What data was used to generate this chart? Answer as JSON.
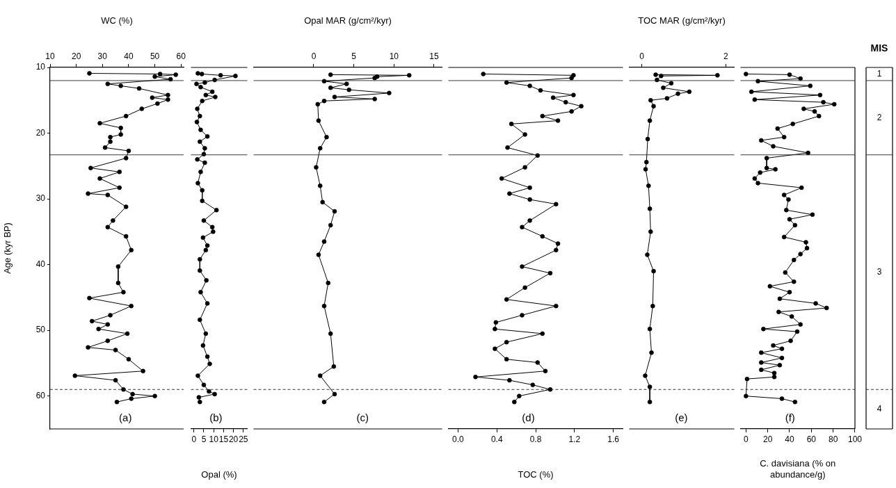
{
  "chart_data": [
    {
      "type": "line",
      "orientation": "horizontal",
      "xlabel": "WC (%)",
      "ylabel": "Age (kyr BP)",
      "xlim": [
        10,
        61
      ],
      "xticks": [
        10,
        20,
        30,
        40,
        50,
        60
      ],
      "ylim": [
        65,
        10
      ],
      "yticks": [
        10,
        20,
        30,
        40,
        50,
        60
      ],
      "color": "#000000",
      "marker": "circle",
      "line_style": "solid",
      "values": [
        25,
        52,
        58,
        50,
        56,
        32,
        37,
        44,
        55,
        49,
        55,
        51,
        45,
        39,
        29,
        37,
        37,
        33,
        33,
        31,
        40,
        39,
        25.5,
        36.5,
        29,
        36.5,
        24.5,
        32,
        39,
        34,
        32,
        39,
        41,
        36,
        36,
        38,
        25,
        41,
        33,
        26,
        32,
        28.5,
        39.5,
        32,
        24.5,
        35,
        40,
        45.5,
        19.5,
        35,
        38,
        41.5,
        50,
        41,
        35.5
      ],
      "x": [
        10.9,
        11.0,
        11.1,
        11.4,
        11.8,
        12.5,
        12.8,
        13.2,
        14.2,
        14.6,
        14.9,
        15.5,
        16.3,
        17.4,
        18.5,
        19.2,
        20.2,
        20.6,
        21.3,
        22.2,
        22.7,
        23.8,
        25.3,
        25.9,
        26.9,
        28.3,
        29.2,
        29.4,
        31.2,
        33.3,
        34.3,
        35.7,
        37.8,
        40.3,
        42.8,
        44.2,
        45.1,
        46.3,
        47.7,
        48.6,
        49.1,
        49.8,
        50.5,
        51.6,
        52.6,
        53.0,
        54.4,
        56.2,
        56.9,
        57.6,
        59.0,
        59.7,
        60.0,
        60.4,
        60.9
      ],
      "ref_lines": [
        {
          "axis": "y",
          "value": 12,
          "line_style": "solid"
        },
        {
          "axis": "y",
          "value": 23.3,
          "line_style": "solid"
        },
        {
          "axis": "y",
          "value": 59,
          "line_style": "dashed"
        }
      ],
      "annotations": [
        "(a)"
      ]
    },
    {
      "type": "line",
      "orientation": "horizontal",
      "xlabel": "Opal (%)",
      "xlim": [
        -1.5,
        27
      ],
      "xticks": [
        0,
        5,
        10,
        15,
        20,
        25
      ],
      "ylim": [
        65,
        10
      ],
      "tick_labels": "x",
      "color": "#000000",
      "marker": "circle",
      "line_style": "solid",
      "values": [
        2,
        4,
        13.5,
        21,
        10.5,
        5.5,
        1.3,
        3.4,
        9.3,
        6,
        10.8,
        4.2,
        1.7,
        3,
        1.5,
        3.4,
        6.8,
        3,
        5.5,
        5,
        1.7,
        5.5,
        3.4,
        2,
        4.2,
        4.2,
        11.4,
        5,
        9.3,
        9.7,
        4.6,
        6.8,
        6,
        3,
        3,
        6.3,
        3.4,
        6.8,
        3,
        6,
        4.6,
        6.8,
        8,
        2,
        5,
        7.6,
        10.5,
        2.5,
        3
      ],
      "x": [
        10.9,
        11.0,
        11.2,
        11.3,
        11.9,
        12.3,
        12.5,
        13.0,
        13.7,
        14.2,
        14.5,
        15.1,
        16.3,
        17.4,
        18.3,
        19.5,
        20.5,
        21.3,
        22.3,
        23.2,
        24.0,
        24.5,
        25.9,
        27.6,
        28.7,
        30.3,
        31.7,
        33.3,
        34.3,
        35.0,
        35.9,
        37.1,
        37.8,
        39.2,
        40.9,
        42.4,
        44.2,
        45.9,
        48.4,
        50.5,
        52.3,
        54.0,
        55.1,
        56.9,
        58.3,
        59.3,
        59.7,
        60.2,
        60.9
      ],
      "ref_lines": [
        {
          "axis": "y",
          "value": 12,
          "line_style": "solid"
        },
        {
          "axis": "y",
          "value": 23.3,
          "line_style": "solid"
        },
        {
          "axis": "y",
          "value": 59,
          "line_style": "dashed"
        }
      ],
      "annotations": [
        "(b)"
      ]
    },
    {
      "type": "line",
      "orientation": "horizontal",
      "xlabel": "Opal MAR (g/cm²/kyr)",
      "xlim": [
        -7.5,
        16
      ],
      "xticks": [
        0,
        5,
        10,
        15
      ],
      "ylim": [
        65,
        10
      ],
      "tick_labels": "x",
      "color": "#000000",
      "marker": "circle",
      "line_style": "solid",
      "values": [
        2.1,
        11.9,
        7.9,
        7.6,
        1.3,
        4.1,
        2.1,
        4.4,
        9.4,
        2.6,
        7.6,
        1.3,
        0.5,
        0.6,
        1.6,
        0.8,
        0.3,
        0.8,
        1.1,
        2.6,
        2.1,
        1.3,
        0.6,
        1.8,
        1.3,
        2.1,
        2.5,
        0.8,
        2.6,
        1.3
      ],
      "x": [
        11.1,
        11.2,
        11.4,
        11.6,
        12.1,
        12.5,
        13.1,
        13.4,
        13.9,
        14.5,
        14.8,
        15.1,
        15.6,
        18.1,
        20.6,
        22.3,
        25.2,
        28.0,
        30.5,
        31.9,
        34.0,
        36.5,
        38.5,
        42.8,
        46.3,
        50.5,
        55.5,
        56.9,
        59.7,
        60.9
      ],
      "ref_lines": [
        {
          "axis": "y",
          "value": 12,
          "line_style": "solid"
        },
        {
          "axis": "y",
          "value": 23.3,
          "line_style": "solid"
        },
        {
          "axis": "y",
          "value": 59,
          "line_style": "dashed"
        }
      ],
      "annotations": [
        "(c)"
      ]
    },
    {
      "type": "line",
      "orientation": "horizontal",
      "xlabel": "TOC (%)",
      "xlim": [
        -0.1,
        1.7
      ],
      "xticks": [
        {
          "value": 0,
          "label": "0.0"
        },
        0.4,
        0.8,
        1.2,
        1.6
      ],
      "ylim": [
        65,
        10
      ],
      "tick_labels": "x",
      "color": "#000000",
      "marker": "circle",
      "line_style": "solid",
      "values": [
        0.26,
        1.19,
        1.17,
        0.5,
        0.74,
        0.85,
        1.19,
        0.98,
        1.11,
        1.27,
        1.17,
        0.87,
        1.03,
        0.55,
        0.69,
        0.51,
        0.82,
        0.69,
        0.45,
        0.74,
        0.53,
        0.74,
        1.01,
        0.74,
        0.66,
        0.87,
        1.03,
        1.01,
        0.66,
        0.95,
        0.69,
        0.5,
        1.01,
        0.66,
        0.39,
        0.38,
        0.87,
        0.5,
        0.38,
        0.5,
        0.82,
        0.9,
        0.18,
        0.53,
        0.77,
        0.95,
        0.63,
        0.58
      ],
      "x": [
        11.0,
        11.2,
        11.6,
        12.3,
        12.8,
        13.5,
        14.2,
        14.6,
        15.3,
        15.9,
        16.7,
        17.4,
        18.1,
        18.6,
        20.2,
        22.2,
        23.4,
        25.2,
        26.9,
        28.3,
        29.2,
        30.1,
        30.8,
        33.3,
        34.3,
        35.7,
        36.8,
        37.8,
        40.3,
        41.3,
        43.5,
        45.3,
        46.3,
        47.7,
        48.8,
        49.8,
        50.5,
        51.8,
        52.8,
        54.4,
        54.9,
        56.2,
        57.1,
        57.6,
        58.3,
        59.0,
        60.0,
        60.9
      ],
      "ref_lines": [
        {
          "axis": "y",
          "value": 12,
          "line_style": "solid"
        },
        {
          "axis": "y",
          "value": 23.3,
          "line_style": "solid"
        },
        {
          "axis": "y",
          "value": 59,
          "line_style": "dashed"
        }
      ],
      "annotations": [
        "(d)"
      ]
    },
    {
      "type": "line",
      "orientation": "horizontal",
      "xlabel": "TOC MAR (g/cm²/kyr)",
      "xlim": [
        -0.3,
        2.2
      ],
      "xticks": [
        0,
        2
      ],
      "ylim": [
        65,
        10
      ],
      "tick_labels": "x",
      "color": "#000000",
      "marker": "circle",
      "line_style": "solid",
      "values": [
        0.33,
        1.8,
        0.46,
        0.36,
        0.7,
        0.51,
        1.13,
        0.86,
        0.6,
        0.21,
        0.28,
        0.19,
        0.14,
        0.11,
        0.09,
        0.16,
        0.19,
        0.21,
        0.13,
        0.28,
        0.26,
        0.19,
        0.23,
        0.08,
        0.19,
        0.19
      ],
      "x": [
        11.1,
        11.2,
        11.3,
        11.9,
        12.4,
        13.1,
        13.7,
        14.0,
        14.7,
        15.0,
        15.9,
        18.1,
        20.9,
        24.4,
        25.5,
        28.0,
        31.5,
        35.0,
        38.5,
        41.0,
        46.3,
        49.8,
        53.4,
        56.9,
        58.6,
        60.9
      ],
      "ref_lines": [
        {
          "axis": "y",
          "value": 12,
          "line_style": "solid"
        },
        {
          "axis": "y",
          "value": 23.3,
          "line_style": "solid"
        },
        {
          "axis": "y",
          "value": 59,
          "line_style": "dashed"
        }
      ],
      "annotations": [
        "(e)"
      ]
    },
    {
      "type": "line",
      "orientation": "horizontal",
      "xlabel": "C. davisiana (% on abundance/g)",
      "xlim": [
        -5,
        100
      ],
      "xticks": [
        0,
        20,
        40,
        60,
        80,
        100
      ],
      "ylim": [
        65,
        10
      ],
      "tick_labels": "x",
      "color": "#000000",
      "marker": "circle",
      "line_style": "solid",
      "values": [
        0,
        40,
        50,
        11,
        59,
        5,
        68,
        8,
        71,
        81,
        53,
        63,
        67,
        43,
        29,
        35,
        14,
        25,
        57,
        19,
        19,
        27,
        13,
        8,
        11,
        51,
        35,
        39,
        37,
        61,
        40,
        45,
        35,
        55,
        56,
        50,
        44,
        36,
        44,
        22,
        40,
        31,
        64,
        74,
        30,
        42,
        50,
        16,
        47,
        41,
        25,
        33,
        14,
        33,
        14,
        31,
        14,
        26,
        26,
        1,
        0,
        33,
        45
      ],
      "x": [
        11.0,
        11.1,
        11.7,
        12.1,
        12.8,
        13.7,
        14.2,
        14.9,
        15.3,
        15.6,
        16.3,
        16.7,
        17.4,
        18.6,
        19.3,
        20.6,
        21.1,
        22.0,
        23.0,
        23.8,
        25.3,
        25.5,
        26.0,
        26.9,
        27.6,
        28.3,
        29.4,
        30.1,
        31.7,
        32.4,
        33.1,
        34.0,
        35.8,
        36.6,
        37.5,
        38.4,
        39.3,
        41.2,
        42.6,
        43.3,
        44.2,
        45.2,
        45.9,
        46.6,
        47.2,
        47.9,
        49.1,
        49.8,
        50.2,
        51.6,
        52.3,
        52.8,
        53.4,
        54.2,
        54.9,
        55.3,
        56.0,
        56.5,
        57.1,
        57.4,
        60.0,
        60.4,
        60.9
      ],
      "ref_lines": [
        {
          "axis": "y",
          "value": 12,
          "line_style": "solid"
        },
        {
          "axis": "y",
          "value": 23.3,
          "line_style": "solid"
        },
        {
          "axis": "y",
          "value": 59,
          "line_style": "dashed"
        }
      ],
      "annotations": [
        "(f)"
      ]
    },
    {
      "type": "other",
      "title": "MIS",
      "annotations": [
        "1",
        "2",
        "3",
        "4"
      ]
    }
  ]
}
